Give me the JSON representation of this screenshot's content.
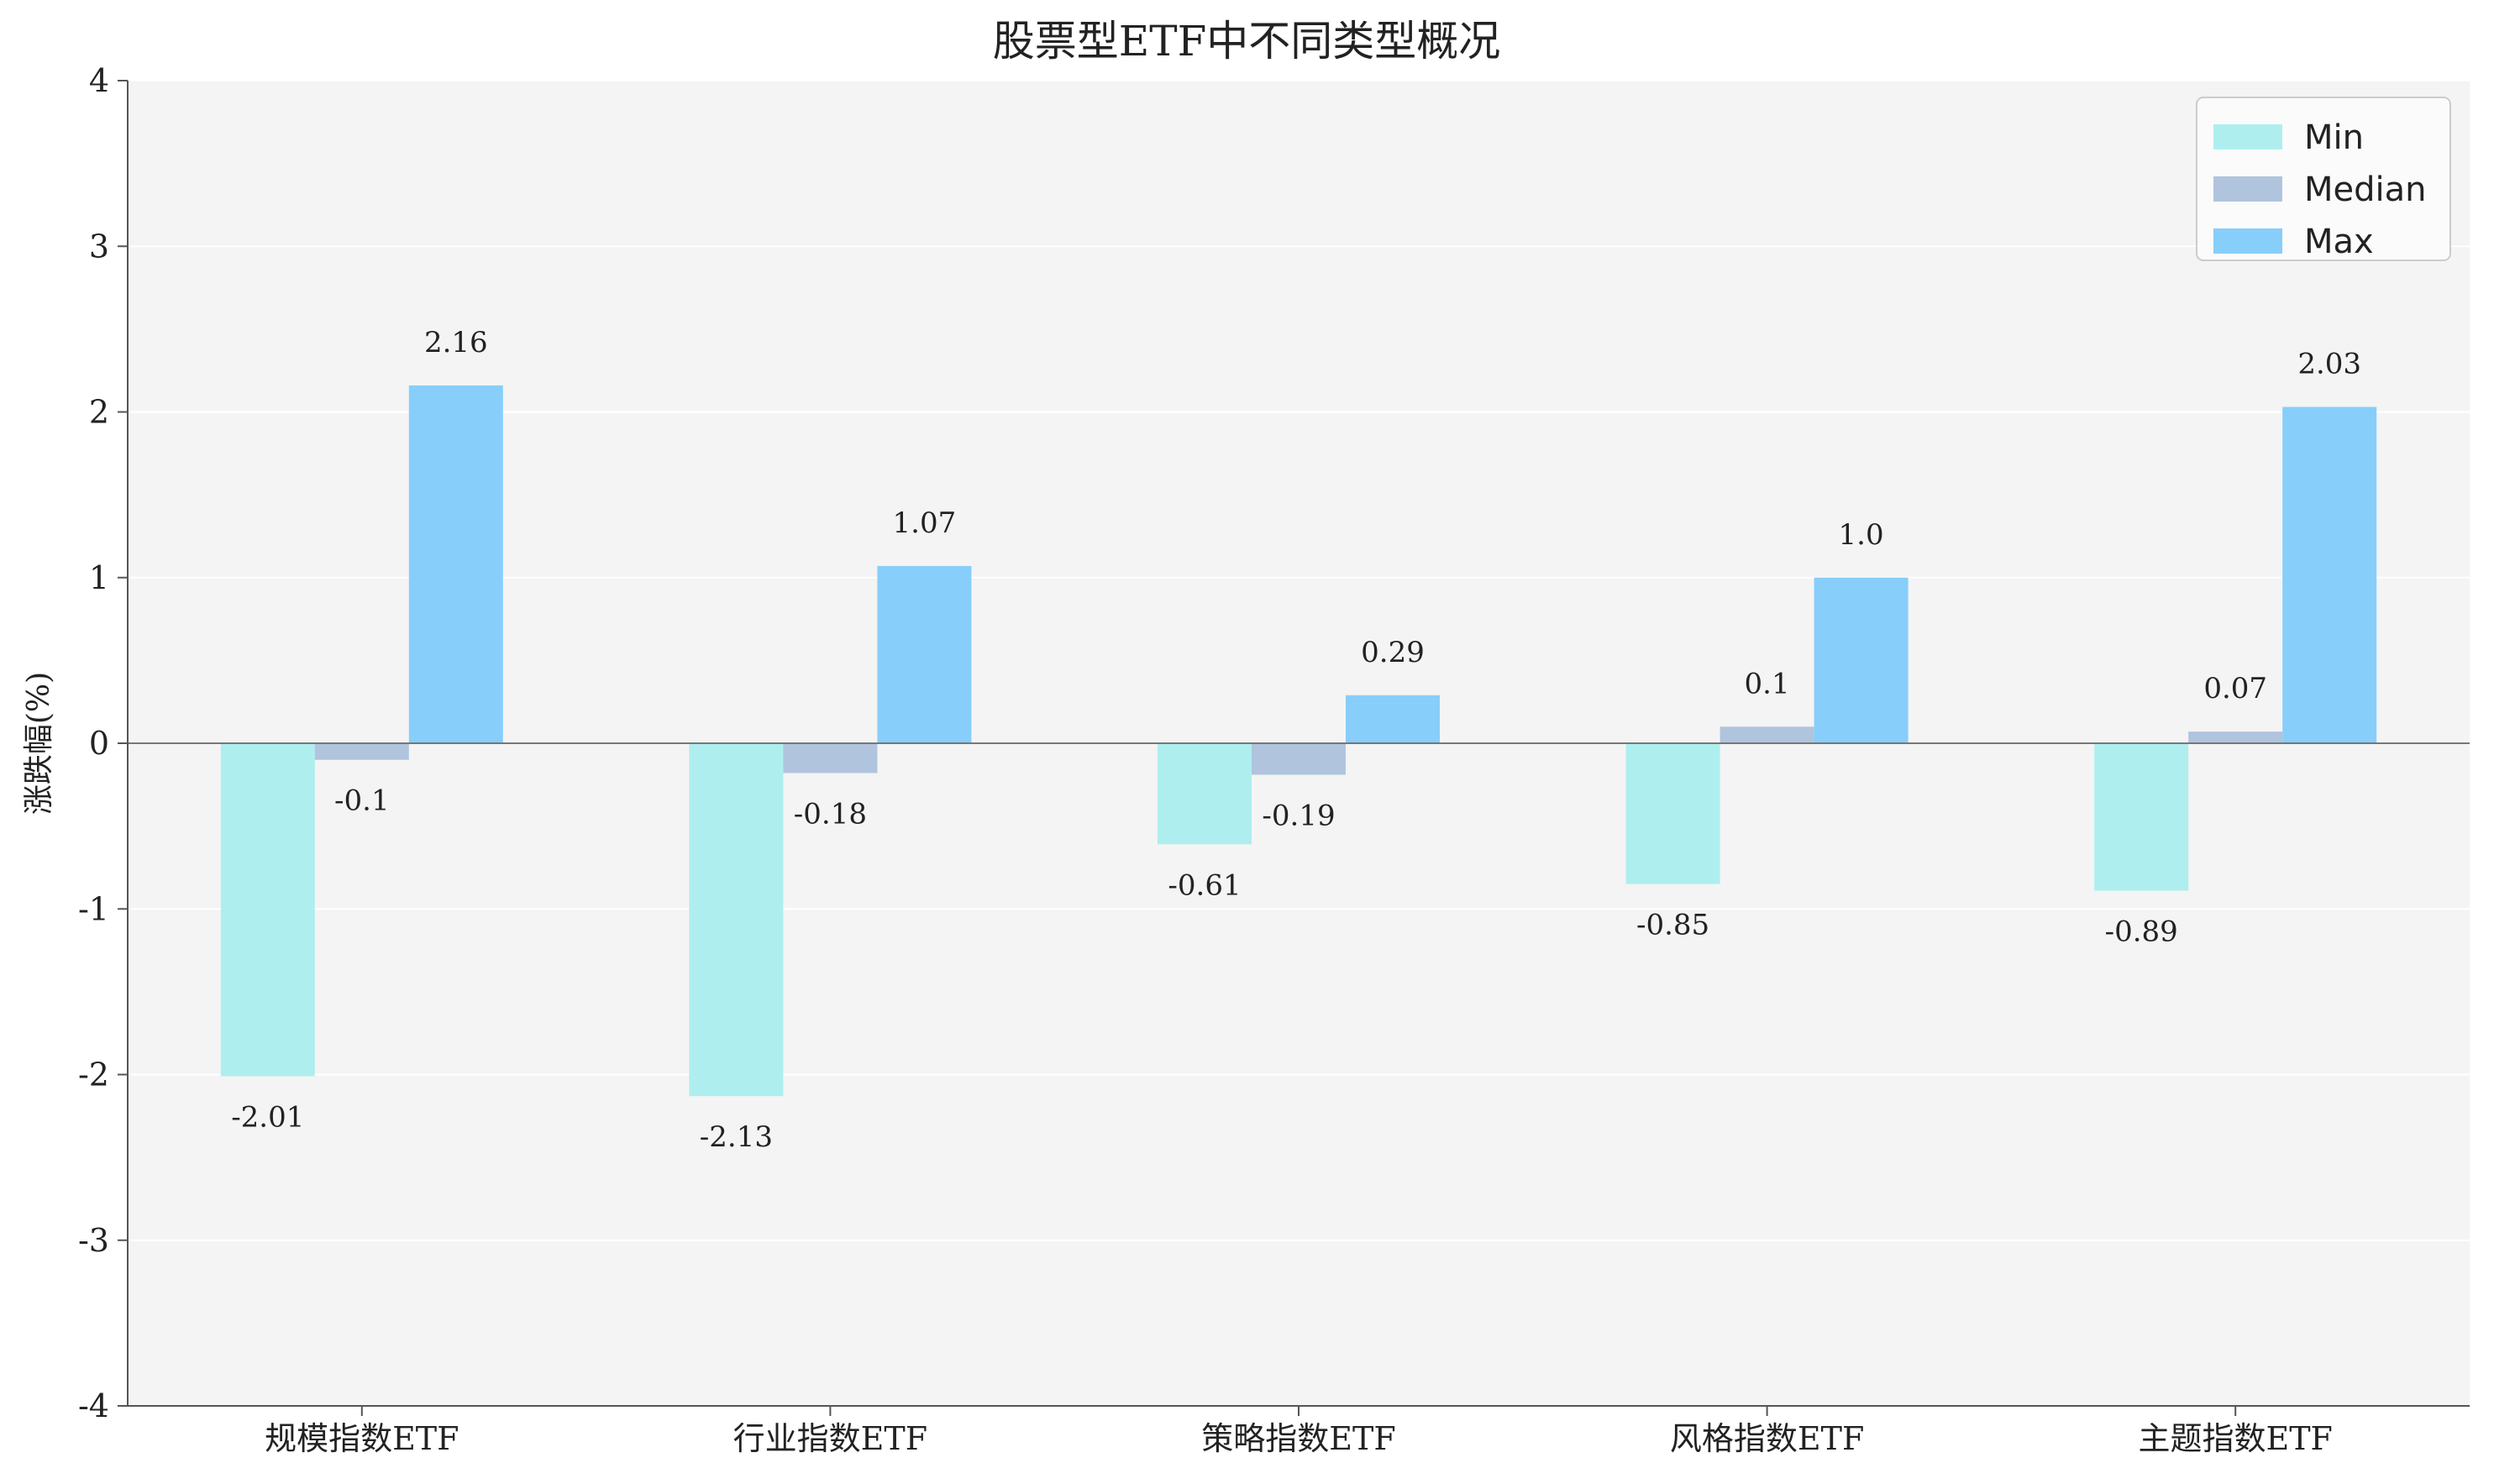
{
  "chart_data": {
    "type": "bar",
    "title": "股票型ETF中不同类型概况",
    "xlabel": "",
    "ylabel": "涨跌幅(%)",
    "ylim": [
      -4,
      4
    ],
    "yticks": [
      4,
      3,
      2,
      1,
      0,
      -1,
      -2,
      -3,
      -4
    ],
    "grid": true,
    "legend_position": "top-right",
    "categories": [
      "规模指数ETF",
      "行业指数ETF",
      "策略指数ETF",
      "风格指数ETF",
      "主题指数ETF"
    ],
    "series": [
      {
        "name": "Min",
        "color": "#AFEEEE",
        "values": [
          -2.01,
          -2.13,
          -0.61,
          -0.85,
          -0.89
        ],
        "labels": [
          "-2.01",
          "-2.13",
          "-0.61",
          "-0.85",
          "-0.89"
        ]
      },
      {
        "name": "Median",
        "color": "#B0C4DE",
        "values": [
          -0.1,
          -0.18,
          -0.19,
          0.1,
          0.07
        ],
        "labels": [
          "-0.1",
          "-0.18",
          "-0.19",
          "0.1",
          "0.07"
        ]
      },
      {
        "name": "Max",
        "color": "#87CEFA",
        "values": [
          2.16,
          1.07,
          0.29,
          1.0,
          2.03
        ],
        "labels": [
          "2.16",
          "1.07",
          "0.29",
          "1.0",
          "2.03"
        ]
      }
    ],
    "colors": {
      "plot_background": "#F4F4F4",
      "grid": "#FFFFFF",
      "axis": "#555555",
      "zero_line": "#777777"
    }
  }
}
